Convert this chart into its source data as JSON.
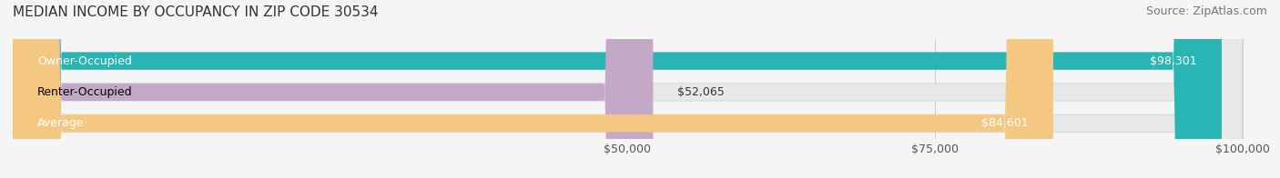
{
  "title": "MEDIAN INCOME BY OCCUPANCY IN ZIP CODE 30534",
  "source": "Source: ZipAtlas.com",
  "categories": [
    "Owner-Occupied",
    "Renter-Occupied",
    "Average"
  ],
  "values": [
    98301,
    52065,
    84601
  ],
  "bar_colors": [
    "#2ab5b5",
    "#c4a8c8",
    "#f5c882"
  ],
  "bar_labels": [
    "$98,301",
    "$52,065",
    "$84,601"
  ],
  "label_inside": [
    true,
    false,
    true
  ],
  "xmax": 100000,
  "xticks": [
    50000,
    75000,
    100000
  ],
  "xticklabels": [
    "$50,000",
    "$75,000",
    "$100,000"
  ],
  "background_color": "#f5f5f5",
  "bar_bg_color": "#e8e8e8",
  "title_fontsize": 11,
  "source_fontsize": 9,
  "label_fontsize": 9,
  "tick_fontsize": 9
}
